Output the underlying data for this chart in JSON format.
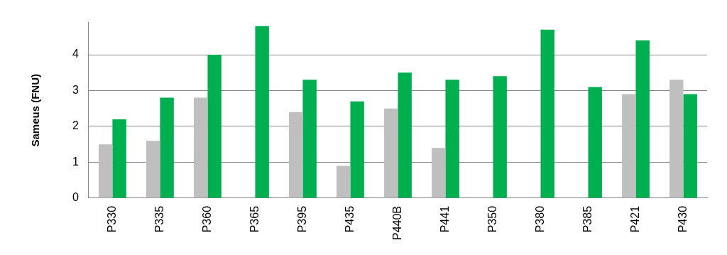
{
  "chart_data": {
    "type": "bar",
    "ylabel": "Sameus (FNU)",
    "categories": [
      "P330",
      "P335",
      "P360",
      "P365",
      "P395",
      "P435",
      "P440B",
      "P441",
      "P350",
      "P380",
      "P385",
      "P421",
      "P430"
    ],
    "series": [
      {
        "color": "#bfbfbf",
        "values": [
          1.5,
          1.6,
          2.8,
          null,
          2.4,
          0.9,
          2.5,
          1.4,
          null,
          null,
          null,
          2.9,
          3.3
        ]
      },
      {
        "color": "#00b050",
        "values": [
          2.2,
          2.8,
          4.0,
          4.8,
          3.3,
          2.7,
          3.5,
          3.3,
          3.4,
          4.7,
          3.1,
          4.4,
          2.9
        ]
      }
    ],
    "ylim": [
      0,
      4.9
    ],
    "yticks": [
      0,
      1,
      2,
      3,
      4
    ],
    "grid": "y"
  }
}
